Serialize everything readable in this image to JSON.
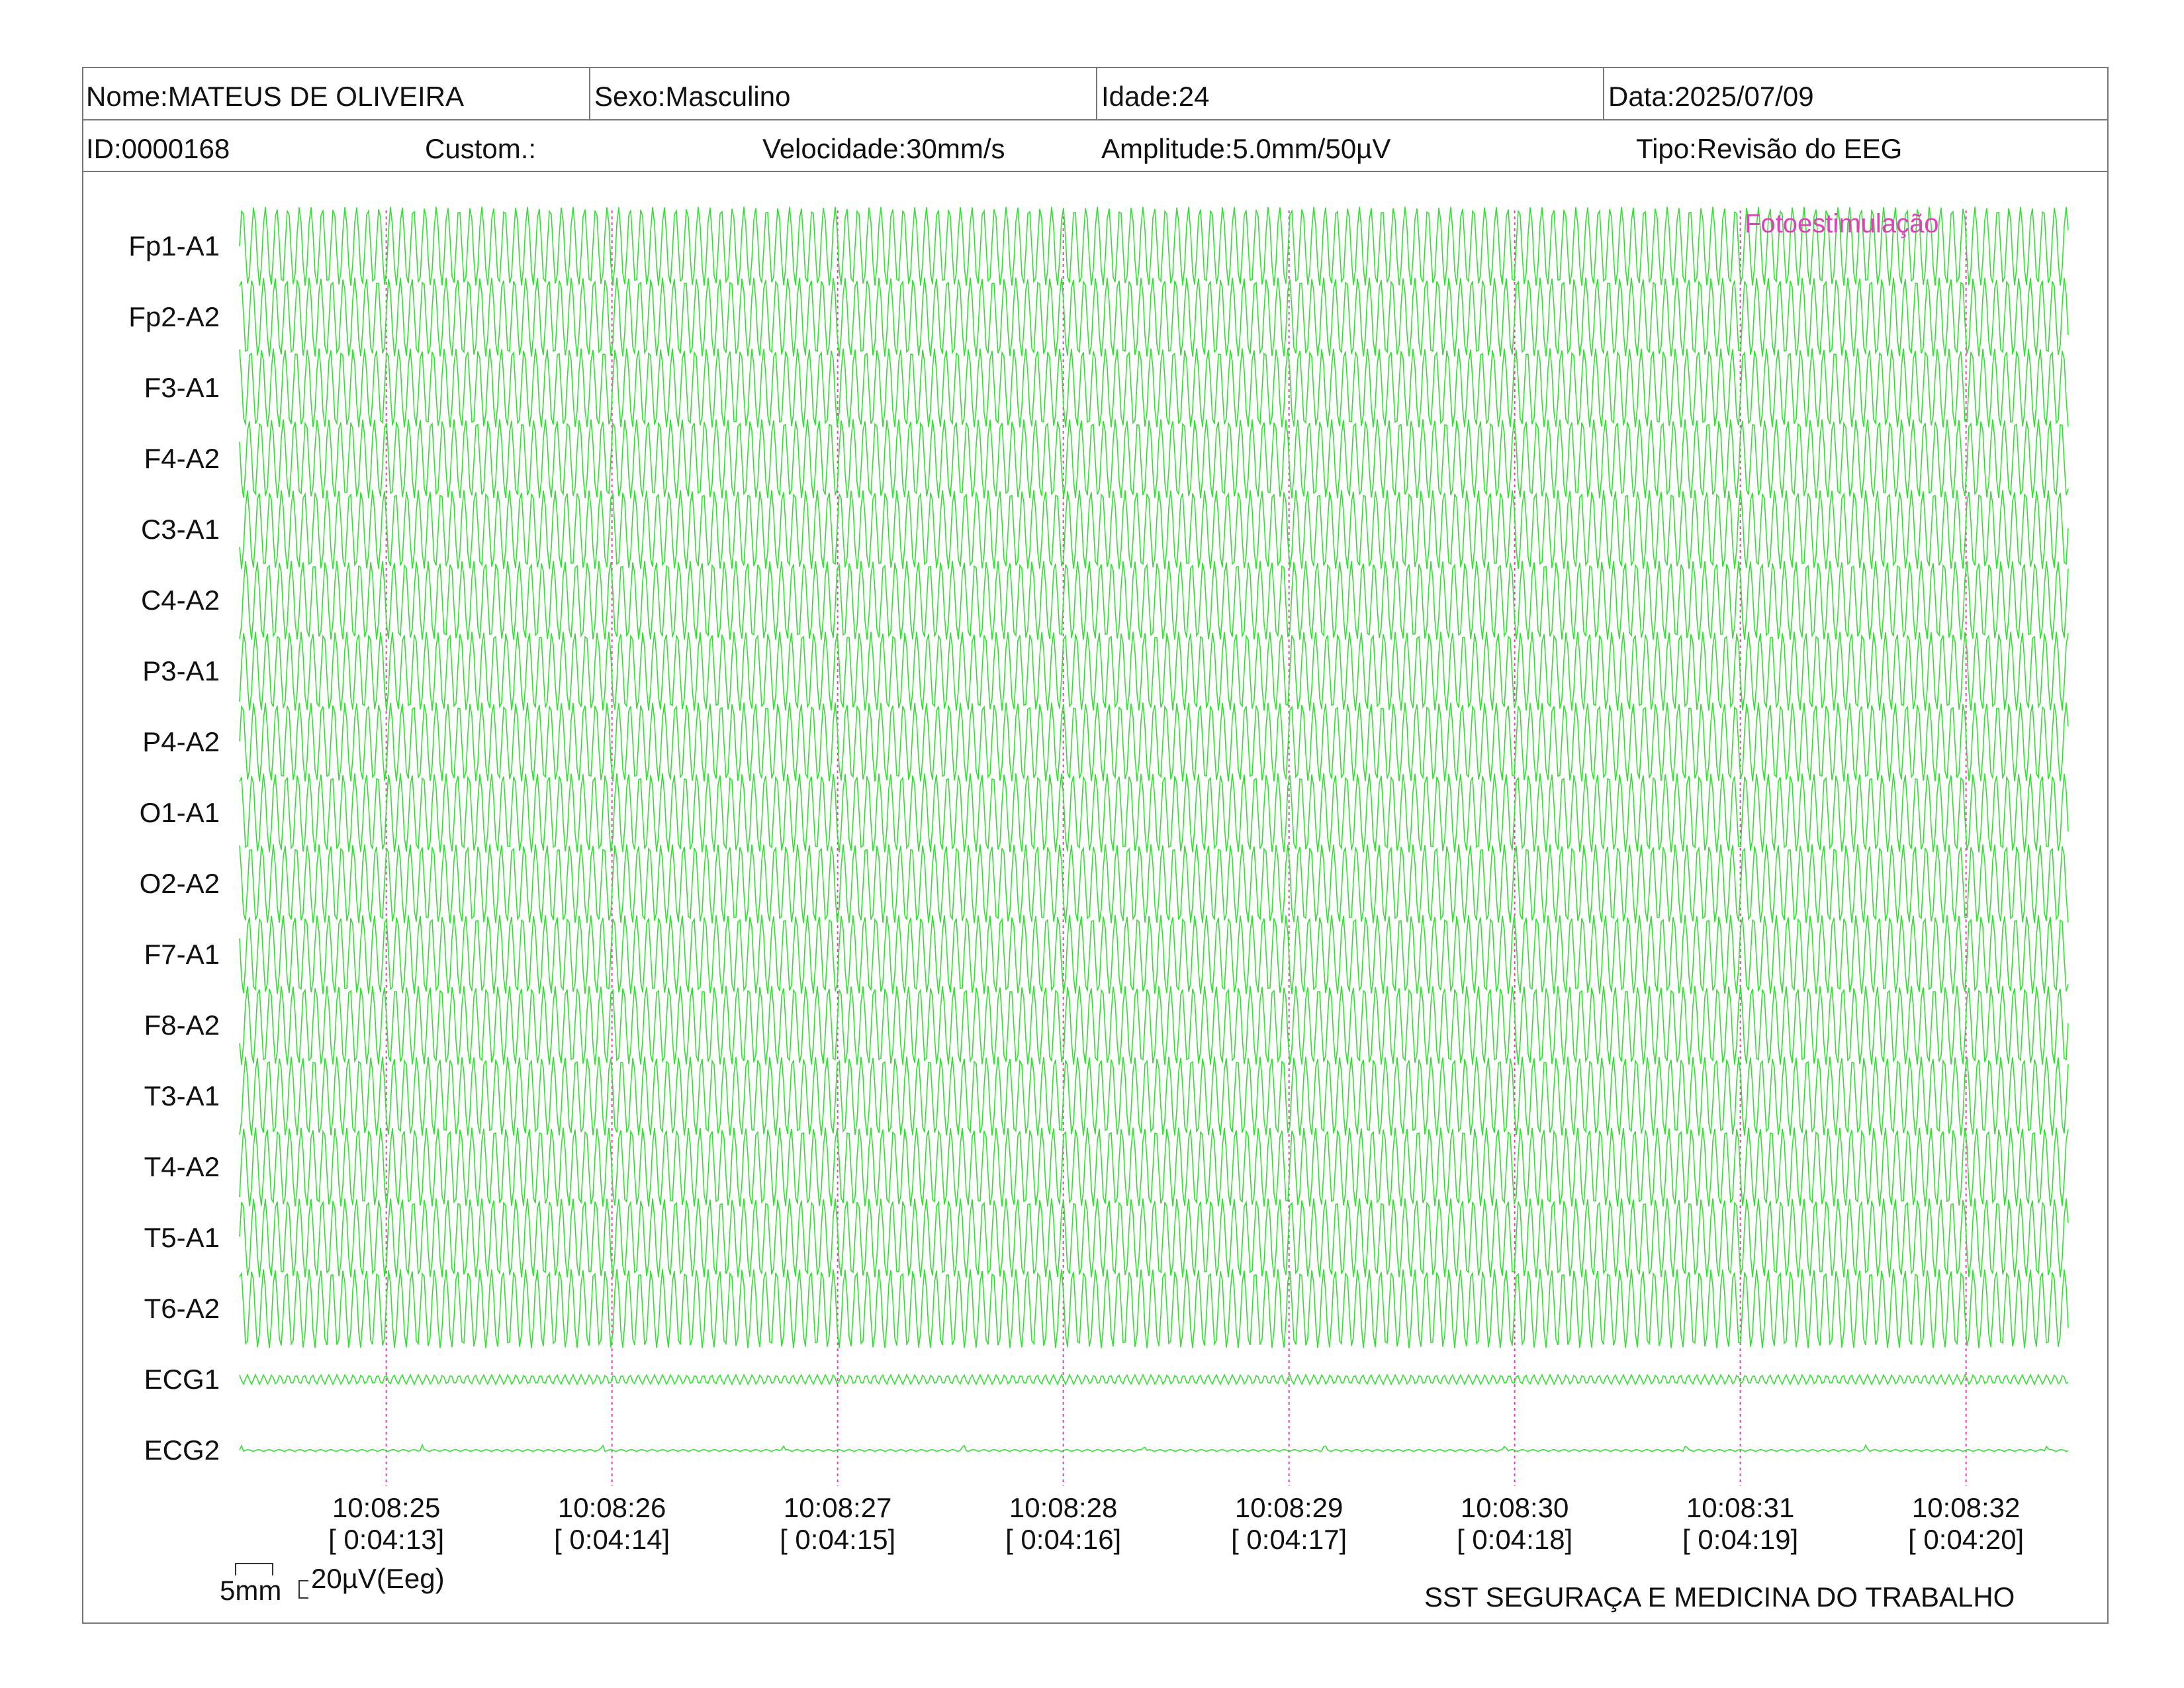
{
  "header": {
    "nome": "Nome:MATEUS DE OLIVEIRA",
    "sexo": "Sexo:Masculino",
    "idade": "Idade:24",
    "data": "Data:2025/07/09",
    "id": "ID:0000168",
    "custom": "Custom.:",
    "velocidade": "Velocidade:30mm/s",
    "amplitude": "Amplitude:5.0mm/50µV",
    "tipo": "Tipo:Revisão do EEG"
  },
  "colors": {
    "trace": "#33e033",
    "marker": "#e040b8",
    "border": "#777777"
  },
  "chart_data": {
    "type": "line",
    "title": "",
    "channels": [
      "Fp1-A1",
      "Fp2-A2",
      "F3-A1",
      "F4-A2",
      "C3-A1",
      "C4-A2",
      "P3-A1",
      "P4-A2",
      "O1-A1",
      "O2-A2",
      "F7-A1",
      "F8-A2",
      "T3-A1",
      "T4-A2",
      "T5-A1",
      "T6-A2",
      "ECG1",
      "ECG2"
    ],
    "time_range": [
      "10:08:24.35",
      "10:08:32.45"
    ],
    "time_ticks": [
      {
        "clock": "10:08:25",
        "elapsed": "[ 0:04:13]"
      },
      {
        "clock": "10:08:26",
        "elapsed": "[ 0:04:14]"
      },
      {
        "clock": "10:08:27",
        "elapsed": "[ 0:04:15]"
      },
      {
        "clock": "10:08:28",
        "elapsed": "[ 0:04:16]"
      },
      {
        "clock": "10:08:29",
        "elapsed": "[ 0:04:17]"
      },
      {
        "clock": "10:08:30",
        "elapsed": "[ 0:04:18]"
      },
      {
        "clock": "10:08:31",
        "elapsed": "[ 0:04:19]"
      },
      {
        "clock": "10:08:32",
        "elapsed": "[ 0:04:20]"
      }
    ],
    "eeg_frequency_hz": 19.8,
    "eeg_amplitude_uv": 170,
    "ecg1_amplitude_uv": 20,
    "ecg2_amplitude_uv": 4,
    "annotation": "Fotoestimulação",
    "scale_time": "5mm",
    "scale_amplitude": "20µV(Eeg)"
  },
  "footer": "SST SEGURAÇA E MEDICINA DO TRABALHO"
}
